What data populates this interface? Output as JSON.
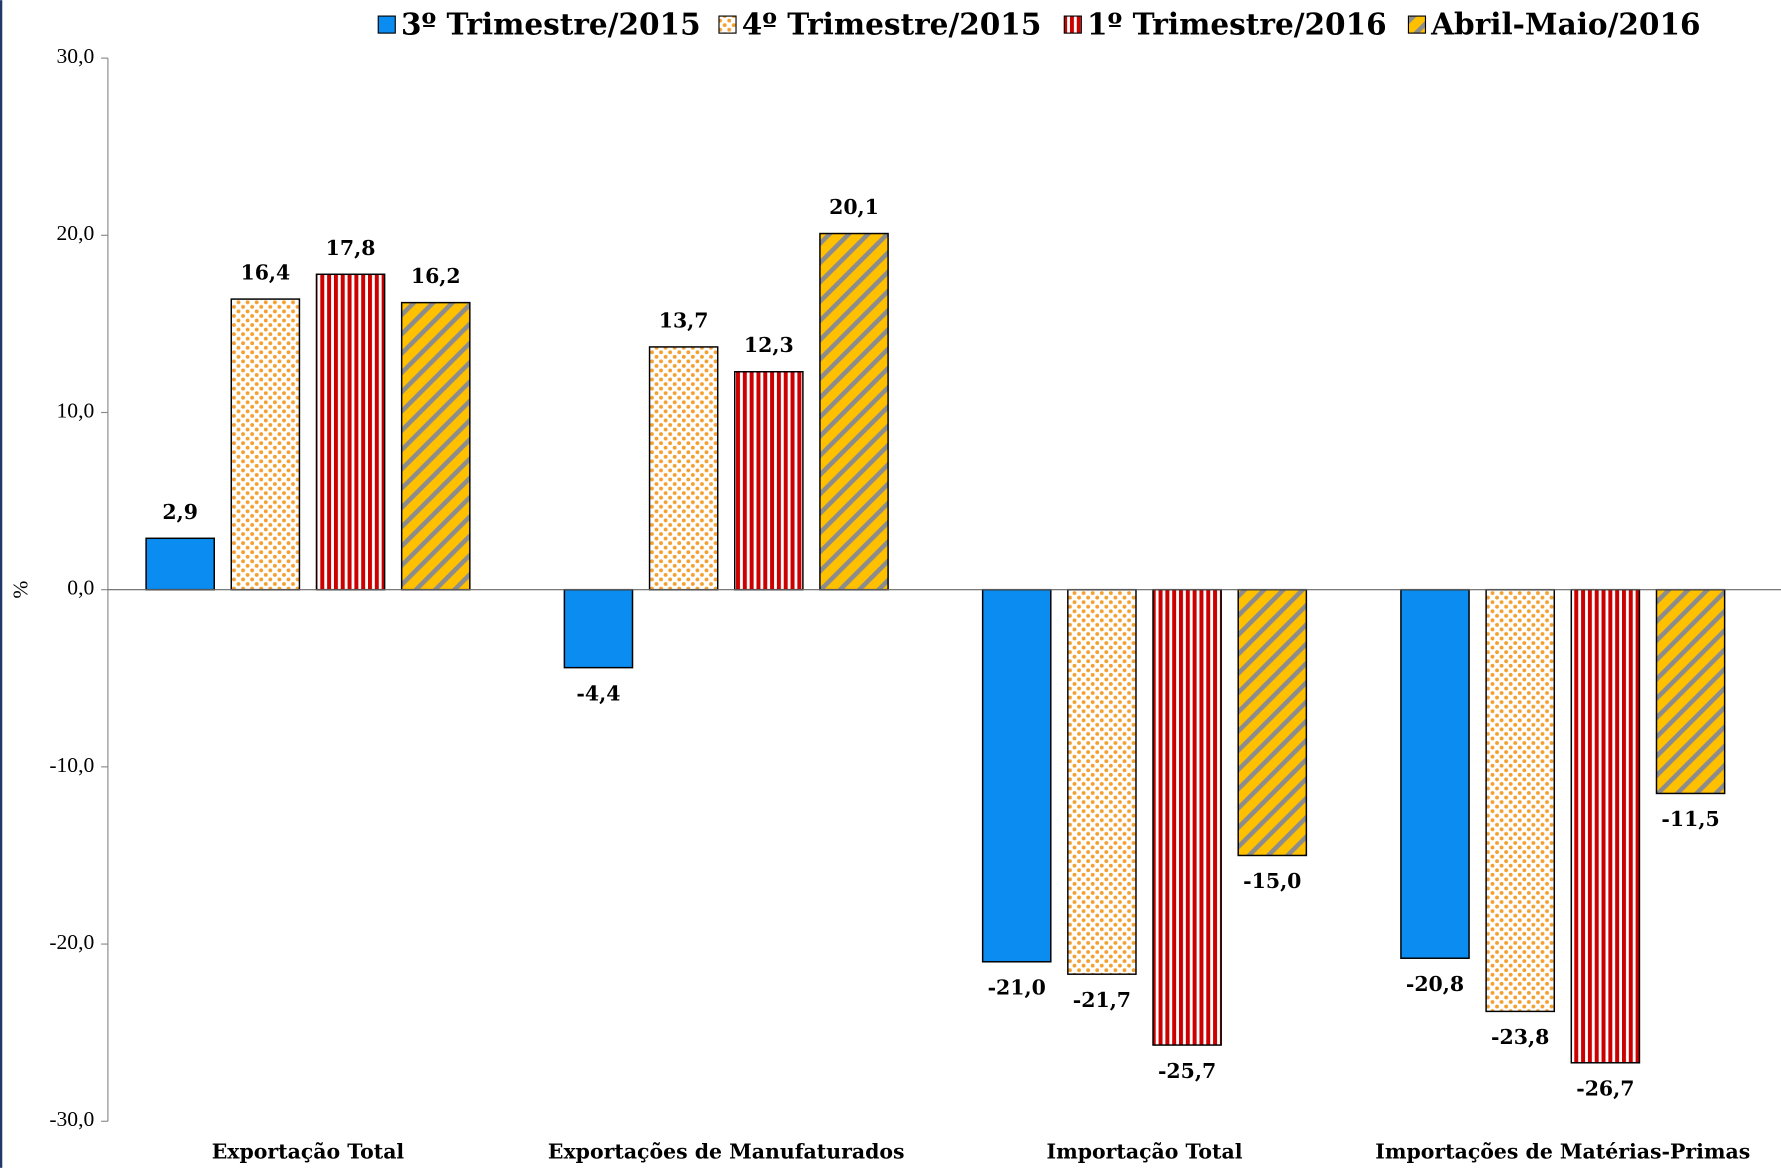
{
  "chart_data": {
    "type": "bar",
    "categories": [
      "Exportação Total",
      "Exportações de Manufaturados",
      "Importação Total",
      "Importações de Matérias-Primas"
    ],
    "y_label": "%",
    "ylim": [
      -30,
      30
    ],
    "yticks": [
      {
        "value": -30,
        "label": "-30,0"
      },
      {
        "value": -20,
        "label": "-20,0"
      },
      {
        "value": -10,
        "label": "-10,0"
      },
      {
        "value": 0,
        "label": "0,0"
      },
      {
        "value": 10,
        "label": "10,0"
      },
      {
        "value": 20,
        "label": "20,0"
      },
      {
        "value": 30,
        "label": "30,0"
      }
    ],
    "legend_position": "top",
    "series": [
      {
        "name": "3º Trimestre/2015",
        "color": "#0a8cf0",
        "pattern": "solid",
        "values": [
          2.9,
          -4.4,
          -21.0,
          -20.8
        ],
        "value_labels": [
          "2,9",
          "-4,4",
          "-21,0",
          "-20,8"
        ]
      },
      {
        "name": "4º Trimestre/2015",
        "color": "#f4a030",
        "pattern": "dots",
        "values": [
          16.4,
          13.7,
          -21.7,
          -23.8
        ],
        "value_labels": [
          "16,4",
          "13,7",
          "-21,7",
          "-23,8"
        ]
      },
      {
        "name": "1º Trimestre/2016",
        "color": "#cc0000",
        "pattern": "vertical-stripes",
        "values": [
          17.8,
          12.3,
          -25.7,
          -26.7
        ],
        "value_labels": [
          "17,8",
          "12,3",
          "-25,7",
          "-26,7"
        ]
      },
      {
        "name": "Abril-Maio/2016",
        "color": "#ffc000",
        "pattern": "diagonal-stripes",
        "values": [
          16.2,
          20.1,
          -15.0,
          -11.5
        ],
        "value_labels": [
          "16,2",
          "20,1",
          "-15,0",
          "-11,5"
        ]
      }
    ]
  }
}
